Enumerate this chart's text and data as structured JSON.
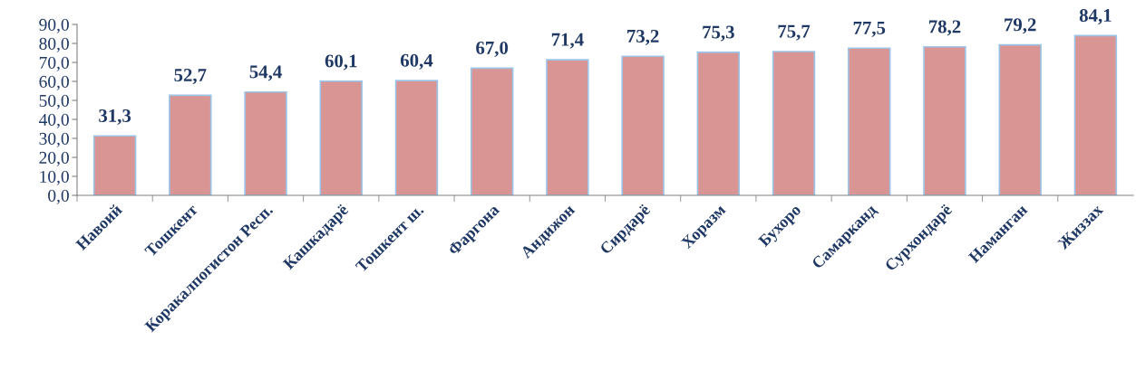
{
  "chart_data": {
    "type": "bar",
    "categories": [
      "Навоий",
      "Тошкент",
      "Коракалпогистон Респ.",
      "Кашкадарё",
      "Тошкент ш.",
      "Фаргона",
      "Андижон",
      "Сирдарё",
      "Хоразм",
      "Бухоро",
      "Самарканд",
      "Сурхондарё",
      "Наманган",
      "Жиззах"
    ],
    "values": [
      31.3,
      52.7,
      54.4,
      60.1,
      60.4,
      67.0,
      71.4,
      73.2,
      75.3,
      75.7,
      77.5,
      78.2,
      79.2,
      84.1
    ],
    "value_labels": [
      "31,3",
      "52,7",
      "54,4",
      "60,1",
      "60,4",
      "67,0",
      "71,4",
      "73,2",
      "75,3",
      "75,7",
      "77,5",
      "78,2",
      "79,2",
      "84,1"
    ],
    "color": "#d99594",
    "ylim": [
      0,
      90
    ],
    "yticks": [
      {
        "value": 0,
        "label": "0,0"
      },
      {
        "value": 10,
        "label": "10,0"
      },
      {
        "value": 20,
        "label": "20,0"
      },
      {
        "value": 30,
        "label": "30,0"
      },
      {
        "value": 40,
        "label": "40,0"
      },
      {
        "value": 50,
        "label": "50,0"
      },
      {
        "value": 60,
        "label": "60,0"
      },
      {
        "value": 70,
        "label": "70,0"
      },
      {
        "value": 80,
        "label": "80,0"
      },
      {
        "value": 90,
        "label": "90,0"
      }
    ],
    "grid": false,
    "legend": false
  }
}
